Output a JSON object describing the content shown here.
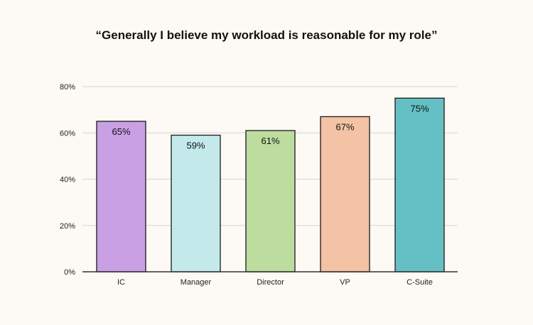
{
  "chart_data": {
    "type": "bar",
    "title": "“Generally I believe my workload is reasonable for my role”",
    "xlabel": "",
    "ylabel": "",
    "categories": [
      "IC",
      "Manager",
      "Director",
      "VP",
      "C-Suite"
    ],
    "values": [
      65,
      59,
      61,
      67,
      75
    ],
    "data_labels": [
      "65%",
      "59%",
      "61%",
      "67%",
      "75%"
    ],
    "colors": [
      "#c9a0e4",
      "#c3e9eb",
      "#bcdd9e",
      "#f4c2a4",
      "#64c0c4"
    ],
    "ylim": [
      0,
      80
    ],
    "yticks": [
      0,
      20,
      40,
      60,
      80
    ],
    "ytick_labels": [
      "0%",
      "20%",
      "40%",
      "60%",
      "80%"
    ],
    "grid": true,
    "legend": "none"
  }
}
